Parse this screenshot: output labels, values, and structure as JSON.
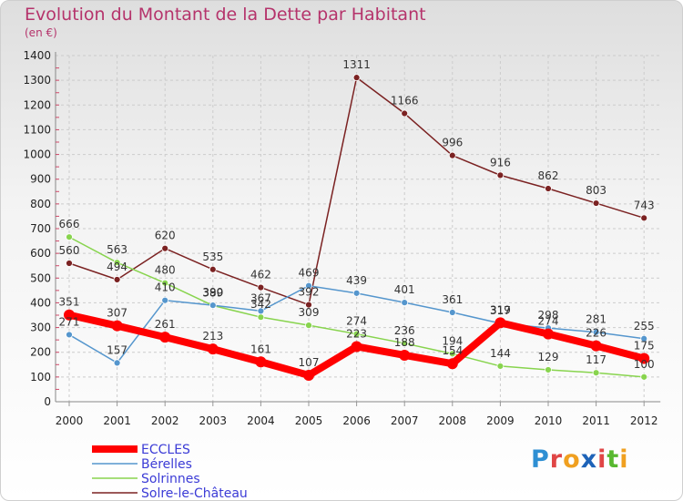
{
  "title": "Evolution du Montant de la Dette par Habitant",
  "unit": "(en €)",
  "chart_data": {
    "type": "line",
    "title": "Evolution du Montant de la Dette par Habitant",
    "ylabel": "(en €)",
    "x": [
      "2000",
      "2001",
      "2002",
      "2003",
      "2004",
      "2005",
      "2006",
      "2007",
      "2008",
      "2009",
      "2010",
      "2011",
      "2012"
    ],
    "ylim": [
      0,
      1400
    ],
    "yticks": [
      0,
      100,
      200,
      300,
      400,
      500,
      600,
      700,
      800,
      900,
      1000,
      1100,
      1200,
      1300,
      1400
    ],
    "grid": true,
    "legend_position": "bottom-left",
    "series": [
      {
        "name": "ECCLES",
        "color": "#ff0000",
        "values": [
          351,
          307,
          261,
          213,
          161,
          107,
          223,
          188,
          154,
          319,
          274,
          226,
          175
        ]
      },
      {
        "name": "Bérelles",
        "color": "#5596cd",
        "values": [
          271,
          157,
          410,
          390,
          367,
          469,
          439,
          401,
          361,
          317,
          298,
          281,
          255
        ]
      },
      {
        "name": "Solrinnes",
        "color": "#88d44e",
        "values": [
          666,
          563,
          480,
          389,
          342,
          309,
          274,
          236,
          194,
          144,
          129,
          117,
          100
        ]
      },
      {
        "name": "Solre-le-Château",
        "color": "#7b2222",
        "values": [
          560,
          494,
          620,
          535,
          462,
          392,
          1311,
          1166,
          996,
          916,
          862,
          803,
          743
        ]
      }
    ]
  },
  "logo": {
    "letters": [
      "P",
      "r",
      "o",
      "x",
      "i",
      "t",
      "i"
    ],
    "colors": [
      "#2e8fd3",
      "#e04646",
      "#f0a020",
      "#1e63b8",
      "#e04646",
      "#58b830",
      "#f0a020"
    ]
  }
}
